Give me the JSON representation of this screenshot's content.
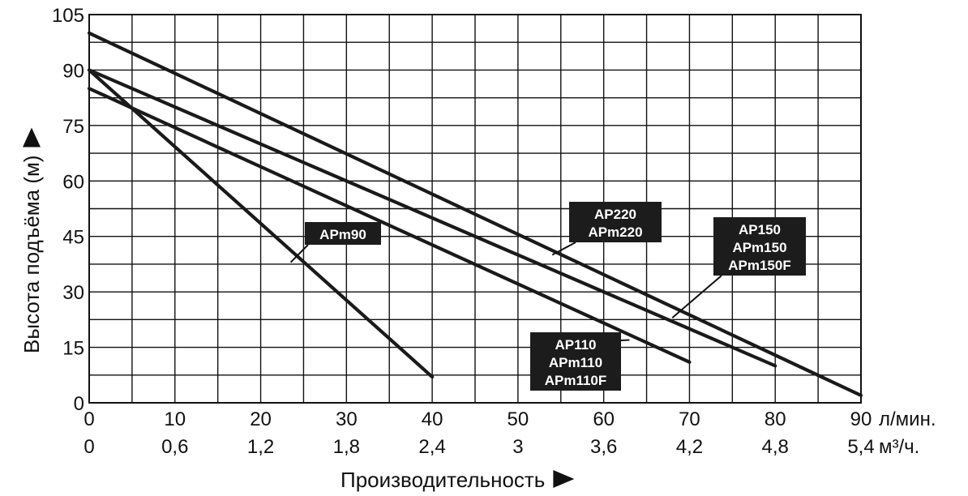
{
  "chart_data": {
    "type": "line",
    "ylabel": "Высота подъёма (м)",
    "xlabel": "Производительность",
    "x_unit_primary": "л/мин.",
    "x_unit_secondary": "м³/ч.",
    "xlim": [
      0,
      90
    ],
    "ylim": [
      0,
      105
    ],
    "grid": true,
    "x_ticks": [
      "0",
      "10",
      "20",
      "30",
      "40",
      "50",
      "60",
      "70",
      "80",
      "90"
    ],
    "x_ticks_secondary": [
      "0",
      "0,6",
      "1,2",
      "1,8",
      "2,4",
      "3",
      "3,6",
      "4,2",
      "4,8",
      "5,4"
    ],
    "y_ticks": [
      "0",
      "15",
      "30",
      "45",
      "60",
      "75",
      "90",
      "105"
    ],
    "series": [
      {
        "x": [
          0,
          40
        ],
        "y": [
          90,
          7
        ]
      },
      {
        "x": [
          0,
          70
        ],
        "y": [
          85,
          11
        ]
      },
      {
        "x": [
          0,
          80
        ],
        "y": [
          90,
          10
        ]
      },
      {
        "x": [
          0,
          90
        ],
        "y": [
          100,
          2
        ]
      }
    ],
    "annotations": [
      {
        "lines": [
          "APm90"
        ],
        "anchor_x": 23.5,
        "anchor_y": 38,
        "series_index": 0
      },
      {
        "lines": [
          "AP110",
          "APm110",
          "APm110F"
        ],
        "anchor_x": 63,
        "anchor_y": 17,
        "series_index": 1
      },
      {
        "lines": [
          "AP220",
          "APm220"
        ],
        "anchor_x": 54,
        "anchor_y": 40,
        "series_index": 2
      },
      {
        "lines": [
          "AP150",
          "APm150",
          "APm150F"
        ],
        "anchor_x": 68,
        "anchor_y": 23,
        "series_index": 3
      }
    ]
  }
}
